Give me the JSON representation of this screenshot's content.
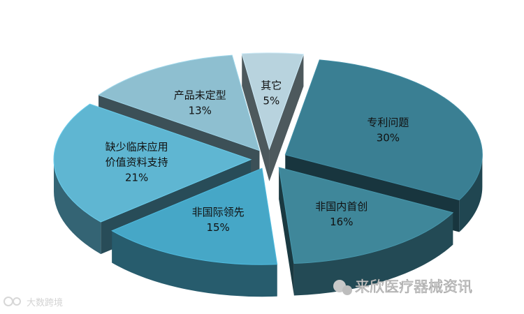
{
  "chart_data": {
    "type": "pie",
    "style": "exploded-3d",
    "slices": [
      {
        "label_lines": [
          "专利问题"
        ],
        "value_text": "30%",
        "value": 30,
        "color": "#3a7f93"
      },
      {
        "label_lines": [
          "非国内首创"
        ],
        "value_text": "16%",
        "value": 16,
        "color": "#3f879a"
      },
      {
        "label_lines": [
          "非国际领先"
        ],
        "value_text": "15%",
        "value": 15,
        "color": "#46a7c7"
      },
      {
        "label_lines": [
          "缺少临床应用",
          "价值资料支持"
        ],
        "value_text": "21%",
        "value": 21,
        "color": "#5fb6d2"
      },
      {
        "label_lines": [
          "产品未定型"
        ],
        "value_text": "13%",
        "value": 13,
        "color": "#8ebfd0"
      },
      {
        "label_lines": [
          "其它"
        ],
        "value_text": "5%",
        "value": 5,
        "color": "#b8d3de"
      }
    ]
  },
  "watermarks": {
    "right": "来欣医疗器械资讯",
    "left": "大数跨境"
  }
}
